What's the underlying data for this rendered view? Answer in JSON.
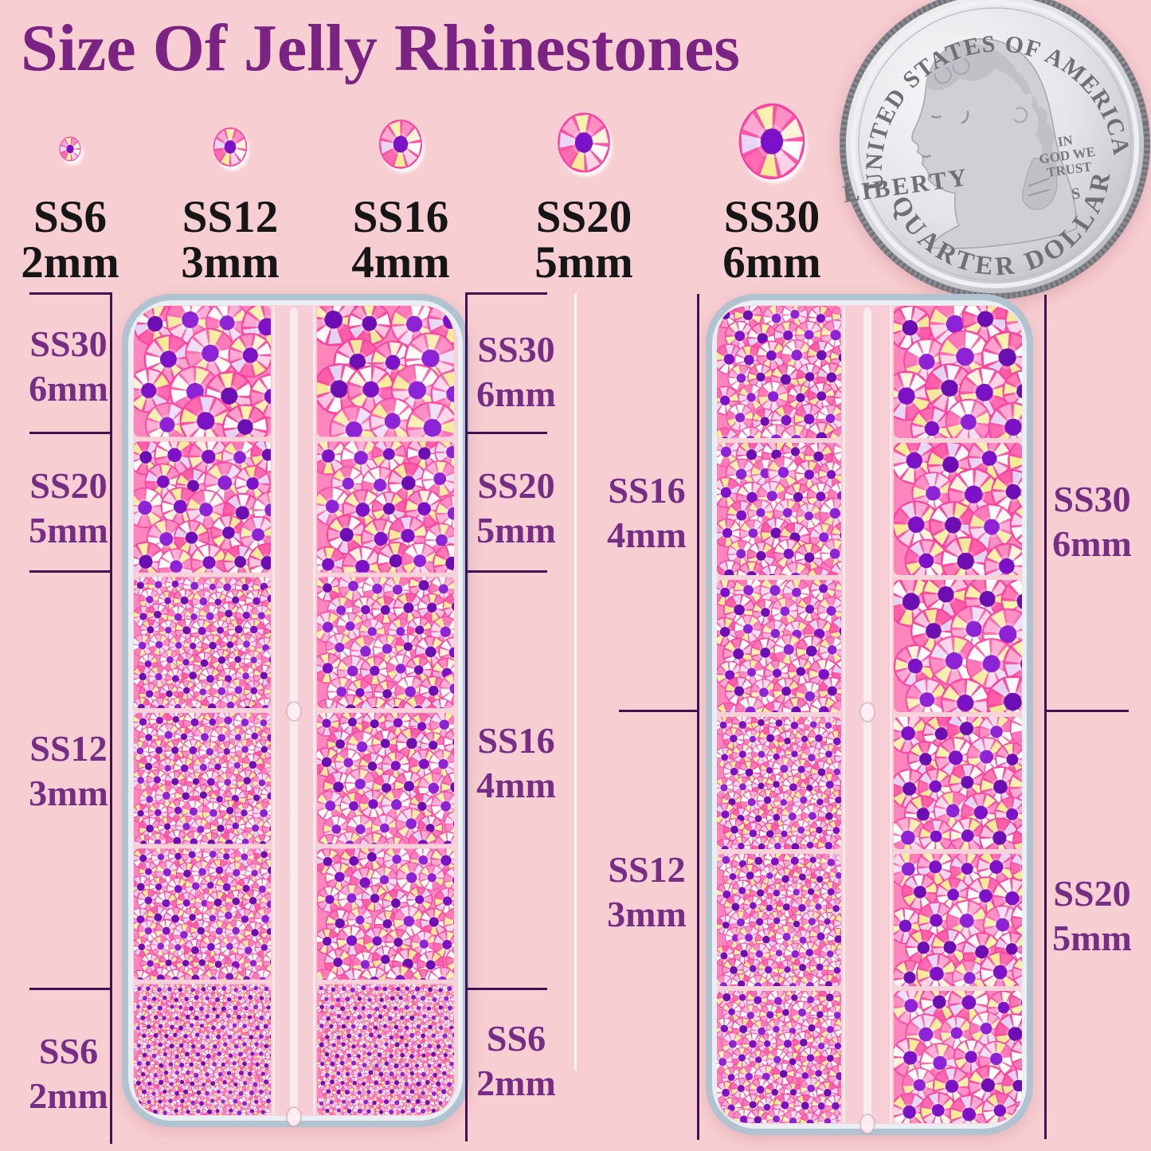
{
  "title": "Size Of Jelly Rhinestones",
  "size_scale": {
    "items": [
      {
        "size": "SS6",
        "mm": "2mm"
      },
      {
        "size": "SS12",
        "mm": "3mm"
      },
      {
        "size": "SS16",
        "mm": "4mm"
      },
      {
        "size": "SS20",
        "mm": "5mm"
      },
      {
        "size": "SS30",
        "mm": "6mm"
      }
    ]
  },
  "coin": {
    "top_text": "UNITED STATES OF AMERICA",
    "liberty": "LIBERTY",
    "motto_lines": [
      "IN",
      "GOD WE",
      "TRUST"
    ],
    "mint_mark": "S",
    "bottom_text": "QUARTER DOLLAR"
  },
  "organizer_boxes": {
    "left": {
      "left_labels": [
        {
          "size": "SS30",
          "mm": "6mm"
        },
        {
          "size": "SS20",
          "mm": "5mm"
        },
        {
          "size": "SS12",
          "mm": "3mm"
        },
        {
          "size": "SS6",
          "mm": "2mm"
        }
      ],
      "right_labels": [
        {
          "size": "SS30",
          "mm": "6mm"
        },
        {
          "size": "SS20",
          "mm": "5mm"
        },
        {
          "size": "SS16",
          "mm": "4mm"
        },
        {
          "size": "SS6",
          "mm": "2mm"
        }
      ],
      "columns_mm": [
        [
          6,
          5,
          3,
          3,
          3,
          2
        ],
        [
          6,
          5,
          4,
          4,
          4,
          2
        ]
      ]
    },
    "right": {
      "left_labels": [
        {
          "size": "SS16",
          "mm": "4mm"
        },
        {
          "size": "SS12",
          "mm": "3mm"
        }
      ],
      "right_labels": [
        {
          "size": "SS30",
          "mm": "6mm"
        },
        {
          "size": "SS20",
          "mm": "5mm"
        }
      ],
      "columns_mm": [
        [
          4,
          4,
          4,
          3,
          3,
          3
        ],
        [
          6,
          6,
          6,
          5,
          5,
          5
        ]
      ]
    }
  },
  "colors": {
    "bg": "#f7ced1",
    "title": "#7b2383",
    "label": "#762d85",
    "line": "#44104f",
    "box_border": "#b1c2d0",
    "tray_inner": "#f8d2d8",
    "cell_pink": "#ff85bd",
    "stone_base": "#ff55a6",
    "stone_dot": "#7c12c8"
  }
}
